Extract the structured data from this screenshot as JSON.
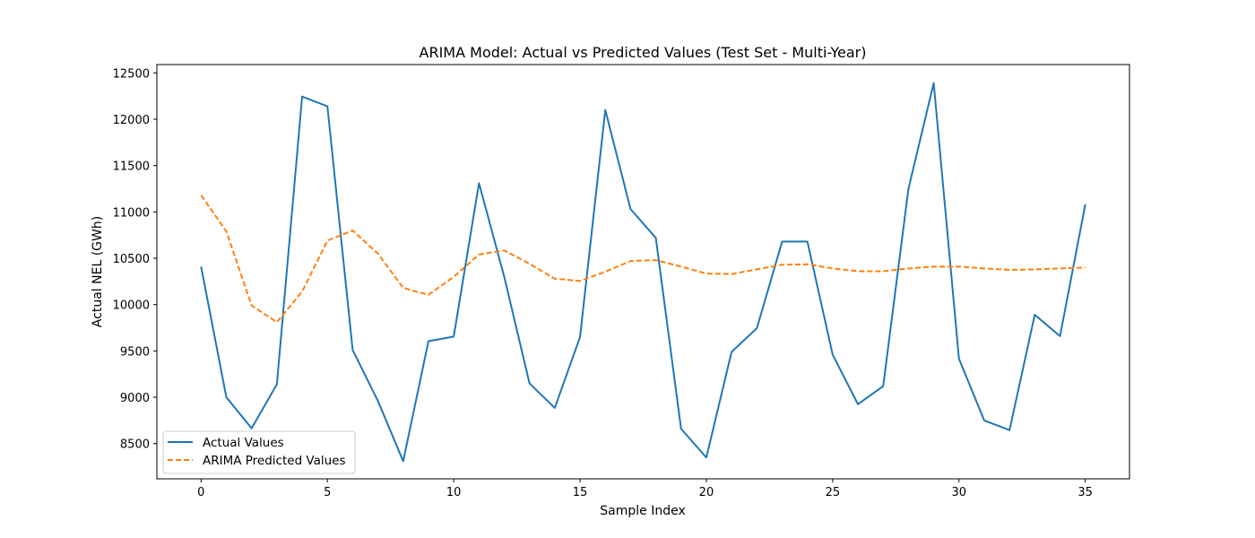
{
  "chart_data": {
    "type": "line",
    "title": "ARIMA Model: Actual vs Predicted Values (Test Set - Multi-Year)",
    "xlabel": "Sample Index",
    "ylabel": "Actual NEL (GWh)",
    "xlim": [
      -1.75,
      36.75
    ],
    "ylim": [
      8120,
      12590
    ],
    "xticks": [
      0,
      5,
      10,
      15,
      20,
      25,
      30,
      35
    ],
    "yticks": [
      8500,
      9000,
      9500,
      10000,
      10500,
      11000,
      11500,
      12000,
      12500
    ],
    "grid": false,
    "legend_position": "lower-left",
    "x": [
      0,
      1,
      2,
      3,
      4,
      5,
      6,
      7,
      8,
      9,
      10,
      11,
      12,
      13,
      14,
      15,
      16,
      17,
      18,
      19,
      20,
      21,
      22,
      23,
      24,
      25,
      26,
      27,
      28,
      29,
      30,
      31,
      32,
      33,
      34,
      35
    ],
    "series": [
      {
        "name": "Actual Values",
        "color": "#1f77b4",
        "style": "solid",
        "values": [
          10410,
          9000,
          8665,
          9140,
          12245,
          12140,
          9510,
          8960,
          8310,
          9605,
          9655,
          11310,
          10300,
          9150,
          8885,
          9650,
          12100,
          11030,
          10720,
          8660,
          8350,
          9490,
          9745,
          10680,
          10680,
          9460,
          8925,
          9120,
          11250,
          12390,
          9415,
          8750,
          8645,
          9890,
          9660,
          11080
        ]
      },
      {
        "name": "ARIMA Predicted Values",
        "color": "#ff7f0e",
        "style": "dashed",
        "values": [
          11180,
          10790,
          9990,
          9810,
          10140,
          10690,
          10800,
          10550,
          10180,
          10105,
          10300,
          10540,
          10585,
          10440,
          10280,
          10255,
          10355,
          10470,
          10480,
          10410,
          10335,
          10330,
          10380,
          10430,
          10435,
          10390,
          10360,
          10360,
          10390,
          10410,
          10410,
          10390,
          10375,
          10380,
          10390,
          10400
        ]
      }
    ]
  }
}
